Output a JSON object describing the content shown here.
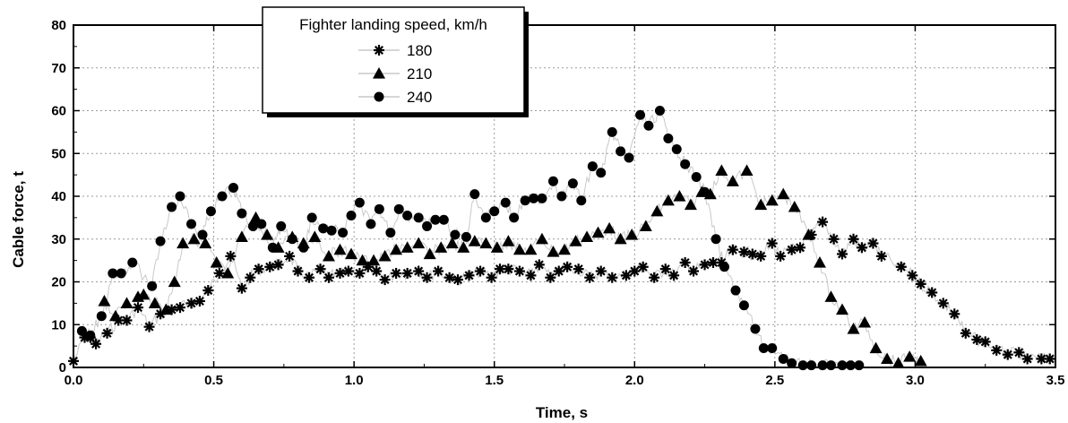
{
  "chart_data": {
    "type": "scatter",
    "xlabel": "Time, s",
    "ylabel": "Cable force, t",
    "xlim": [
      0,
      3.5
    ],
    "ylim": [
      0,
      80
    ],
    "xticks": [
      "0.0",
      "0.5",
      "1.0",
      "1.5",
      "2.0",
      "2.5",
      "3.0",
      "3.5"
    ],
    "yticks": [
      "0",
      "10",
      "20",
      "30",
      "40",
      "50",
      "60",
      "70",
      "80"
    ],
    "grid": true,
    "legend": {
      "title": "Fighter landing speed, km/h",
      "placement": "top-left"
    },
    "series": [
      {
        "name": "180",
        "marker": "asterisk",
        "points": [
          [
            0.0,
            1.5
          ],
          [
            0.04,
            7
          ],
          [
            0.06,
            7
          ],
          [
            0.08,
            5.5
          ],
          [
            0.12,
            8
          ],
          [
            0.16,
            11
          ],
          [
            0.19,
            11
          ],
          [
            0.23,
            14
          ],
          [
            0.27,
            9.5
          ],
          [
            0.31,
            12.5
          ],
          [
            0.35,
            13.5
          ],
          [
            0.38,
            14
          ],
          [
            0.42,
            15
          ],
          [
            0.45,
            15.5
          ],
          [
            0.48,
            18
          ],
          [
            0.52,
            22
          ],
          [
            0.56,
            26
          ],
          [
            0.6,
            18.5
          ],
          [
            0.63,
            21
          ],
          [
            0.66,
            23
          ],
          [
            0.7,
            23.5
          ],
          [
            0.73,
            24
          ],
          [
            0.77,
            26
          ],
          [
            0.8,
            22.5
          ],
          [
            0.84,
            21
          ],
          [
            0.88,
            23
          ],
          [
            0.91,
            21
          ],
          [
            0.95,
            22
          ],
          [
            0.98,
            22.5
          ],
          [
            1.02,
            22
          ],
          [
            1.05,
            23.5
          ],
          [
            1.08,
            22.5
          ],
          [
            1.11,
            20.5
          ],
          [
            1.15,
            22
          ],
          [
            1.19,
            22
          ],
          [
            1.23,
            22.5
          ],
          [
            1.26,
            21
          ],
          [
            1.3,
            22.5
          ],
          [
            1.34,
            21
          ],
          [
            1.37,
            20.5
          ],
          [
            1.41,
            21.5
          ],
          [
            1.45,
            22.5
          ],
          [
            1.49,
            21
          ],
          [
            1.52,
            23
          ],
          [
            1.55,
            23
          ],
          [
            1.59,
            22.5
          ],
          [
            1.63,
            21.5
          ],
          [
            1.66,
            24
          ],
          [
            1.7,
            21
          ],
          [
            1.73,
            22.5
          ],
          [
            1.76,
            23.5
          ],
          [
            1.8,
            23
          ],
          [
            1.84,
            21
          ],
          [
            1.88,
            22.5
          ],
          [
            1.92,
            21
          ],
          [
            1.97,
            21.5
          ],
          [
            2.0,
            22.5
          ],
          [
            2.03,
            23.5
          ],
          [
            2.07,
            21
          ],
          [
            2.11,
            23
          ],
          [
            2.14,
            21.5
          ],
          [
            2.18,
            24.5
          ],
          [
            2.21,
            22.5
          ],
          [
            2.25,
            24
          ],
          [
            2.28,
            24.5
          ],
          [
            2.31,
            24.5
          ],
          [
            2.35,
            27.5
          ],
          [
            2.39,
            27
          ],
          [
            2.42,
            26.5
          ],
          [
            2.45,
            26
          ],
          [
            2.49,
            29
          ],
          [
            2.52,
            26
          ],
          [
            2.56,
            27.5
          ],
          [
            2.59,
            28
          ],
          [
            2.63,
            31
          ],
          [
            2.67,
            34
          ],
          [
            2.71,
            30
          ],
          [
            2.74,
            26.5
          ],
          [
            2.78,
            30
          ],
          [
            2.81,
            28
          ],
          [
            2.85,
            29
          ],
          [
            2.88,
            26
          ],
          [
            2.95,
            23.5
          ],
          [
            2.99,
            21.5
          ],
          [
            3.02,
            19.5
          ],
          [
            3.06,
            17.5
          ],
          [
            3.1,
            15
          ],
          [
            3.14,
            12.5
          ],
          [
            3.18,
            8
          ],
          [
            3.22,
            6.5
          ],
          [
            3.25,
            6
          ],
          [
            3.29,
            4
          ],
          [
            3.33,
            3
          ],
          [
            3.37,
            3.5
          ],
          [
            3.4,
            2
          ],
          [
            3.45,
            2
          ],
          [
            3.48,
            2
          ]
        ]
      },
      {
        "name": "210",
        "marker": "triangle",
        "points": [
          [
            0.11,
            15.5
          ],
          [
            0.15,
            12
          ],
          [
            0.19,
            15
          ],
          [
            0.23,
            16.5
          ],
          [
            0.25,
            17
          ],
          [
            0.29,
            15
          ],
          [
            0.33,
            13.5
          ],
          [
            0.36,
            20
          ],
          [
            0.39,
            29
          ],
          [
            0.43,
            30
          ],
          [
            0.47,
            29
          ],
          [
            0.51,
            24.5
          ],
          [
            0.55,
            22
          ],
          [
            0.6,
            30.5
          ],
          [
            0.65,
            35
          ],
          [
            0.69,
            31
          ],
          [
            0.73,
            28
          ],
          [
            0.78,
            30.5
          ],
          [
            0.82,
            29
          ],
          [
            0.86,
            30.5
          ],
          [
            0.91,
            26
          ],
          [
            0.95,
            27.5
          ],
          [
            0.99,
            26.5
          ],
          [
            1.03,
            25
          ],
          [
            1.07,
            25
          ],
          [
            1.11,
            26
          ],
          [
            1.15,
            27.5
          ],
          [
            1.19,
            28
          ],
          [
            1.23,
            29
          ],
          [
            1.27,
            26.5
          ],
          [
            1.31,
            28
          ],
          [
            1.35,
            29
          ],
          [
            1.39,
            28
          ],
          [
            1.43,
            29.5
          ],
          [
            1.47,
            29
          ],
          [
            1.51,
            28
          ],
          [
            1.55,
            29.5
          ],
          [
            1.59,
            27.5
          ],
          [
            1.63,
            27.5
          ],
          [
            1.67,
            30
          ],
          [
            1.71,
            27
          ],
          [
            1.75,
            27.5
          ],
          [
            1.79,
            29.5
          ],
          [
            1.83,
            30.5
          ],
          [
            1.87,
            31.5
          ],
          [
            1.91,
            32.5
          ],
          [
            1.95,
            30
          ],
          [
            1.99,
            31
          ],
          [
            2.04,
            33
          ],
          [
            2.08,
            36.5
          ],
          [
            2.12,
            39
          ],
          [
            2.16,
            40
          ],
          [
            2.2,
            38
          ],
          [
            2.24,
            41
          ],
          [
            2.27,
            40.5
          ],
          [
            2.31,
            46
          ],
          [
            2.35,
            43.5
          ],
          [
            2.4,
            46
          ],
          [
            2.45,
            38
          ],
          [
            2.49,
            39
          ],
          [
            2.53,
            40.5
          ],
          [
            2.57,
            37.5
          ],
          [
            2.62,
            31
          ],
          [
            2.66,
            24.5
          ],
          [
            2.7,
            16.5
          ],
          [
            2.74,
            13.5
          ],
          [
            2.78,
            9
          ],
          [
            2.82,
            10.5
          ],
          [
            2.86,
            4.5
          ],
          [
            2.9,
            2
          ],
          [
            2.94,
            1
          ],
          [
            2.98,
            2.5
          ],
          [
            3.02,
            1.5
          ]
        ]
      },
      {
        "name": "240",
        "marker": "circle",
        "points": [
          [
            0.03,
            8.5
          ],
          [
            0.06,
            7.5
          ],
          [
            0.1,
            12
          ],
          [
            0.14,
            22
          ],
          [
            0.17,
            22
          ],
          [
            0.21,
            24.5
          ],
          [
            0.28,
            19
          ],
          [
            0.31,
            29.5
          ],
          [
            0.35,
            37.5
          ],
          [
            0.38,
            40
          ],
          [
            0.42,
            33.5
          ],
          [
            0.46,
            31
          ],
          [
            0.49,
            36.5
          ],
          [
            0.53,
            40
          ],
          [
            0.57,
            42
          ],
          [
            0.6,
            36
          ],
          [
            0.64,
            33
          ],
          [
            0.67,
            33.5
          ],
          [
            0.71,
            28
          ],
          [
            0.74,
            33
          ],
          [
            0.78,
            30
          ],
          [
            0.82,
            28
          ],
          [
            0.85,
            35
          ],
          [
            0.89,
            32.5
          ],
          [
            0.92,
            32
          ],
          [
            0.96,
            31.5
          ],
          [
            0.99,
            35.5
          ],
          [
            1.02,
            38.5
          ],
          [
            1.06,
            33.5
          ],
          [
            1.09,
            37
          ],
          [
            1.13,
            31.5
          ],
          [
            1.16,
            37
          ],
          [
            1.19,
            35.5
          ],
          [
            1.23,
            35
          ],
          [
            1.26,
            33
          ],
          [
            1.29,
            34.5
          ],
          [
            1.32,
            34.5
          ],
          [
            1.36,
            31
          ],
          [
            1.4,
            30.5
          ],
          [
            1.43,
            40.5
          ],
          [
            1.47,
            35
          ],
          [
            1.5,
            36.5
          ],
          [
            1.54,
            38.5
          ],
          [
            1.57,
            35
          ],
          [
            1.61,
            39
          ],
          [
            1.64,
            39.5
          ],
          [
            1.67,
            39.5
          ],
          [
            1.71,
            43.5
          ],
          [
            1.74,
            40
          ],
          [
            1.78,
            43
          ],
          [
            1.81,
            39
          ],
          [
            1.85,
            47
          ],
          [
            1.88,
            45.5
          ],
          [
            1.92,
            55
          ],
          [
            1.95,
            50.5
          ],
          [
            1.98,
            49
          ],
          [
            2.02,
            59
          ],
          [
            2.05,
            56.5
          ],
          [
            2.09,
            60
          ],
          [
            2.12,
            53.5
          ],
          [
            2.15,
            51
          ],
          [
            2.18,
            47.5
          ],
          [
            2.22,
            44.5
          ],
          [
            2.25,
            41
          ],
          [
            2.29,
            30
          ],
          [
            2.32,
            23.5
          ],
          [
            2.36,
            18
          ],
          [
            2.39,
            14.5
          ],
          [
            2.43,
            9
          ],
          [
            2.46,
            4.5
          ],
          [
            2.49,
            4.5
          ],
          [
            2.53,
            2
          ],
          [
            2.56,
            1
          ],
          [
            2.6,
            0.5
          ],
          [
            2.63,
            0.5
          ],
          [
            2.67,
            0.5
          ],
          [
            2.7,
            0.5
          ],
          [
            2.74,
            0.5
          ],
          [
            2.77,
            0.5
          ],
          [
            2.8,
            0.5
          ]
        ]
      }
    ]
  }
}
